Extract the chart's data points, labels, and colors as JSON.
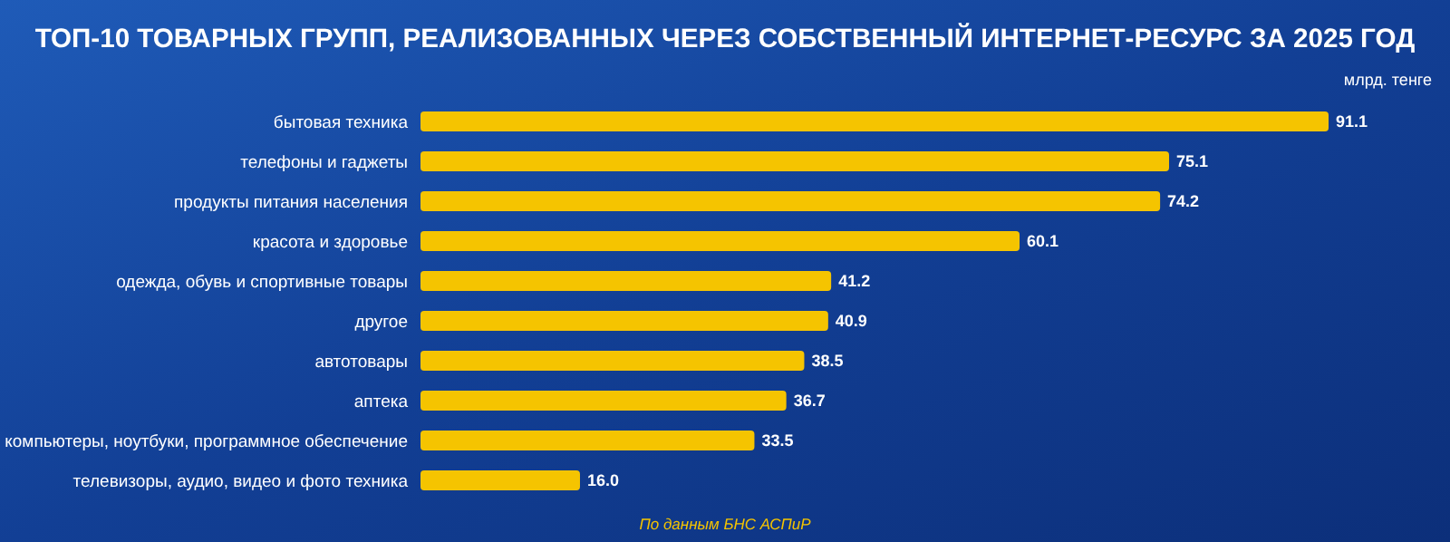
{
  "chart_data": {
    "type": "bar",
    "orientation": "horizontal",
    "title": "ТОП-10 ТОВАРНЫХ ГРУПП, РЕАЛИЗОВАННЫХ ЧЕРЕЗ СОБСТВЕННЫЙ ИНТЕРНЕТ-РЕСУРС ЗА 2025 ГОД",
    "categories": [
      "бытовая техника",
      "телефоны и гаджеты",
      "продукты питания населения",
      "красота и здоровье",
      "одежда, обувь и спортивные товары",
      "другое",
      "автотовары",
      "аптека",
      "компьютеры, ноутбуки, программное обеспечение",
      "телевизоры, аудио, видео и фото техника"
    ],
    "values": [
      91.1,
      75.1,
      74.2,
      60.1,
      41.2,
      40.9,
      38.5,
      36.7,
      33.5,
      16.0
    ],
    "value_labels": [
      "91.1",
      "75.1",
      "74.2",
      "60.1",
      "41.2",
      "40.9",
      "38.5",
      "36.7",
      "33.5",
      "16.0"
    ],
    "color": "#f5c400",
    "annotations": [
      "млрд. тенге",
      "По данным БНС АСПиР"
    ]
  }
}
